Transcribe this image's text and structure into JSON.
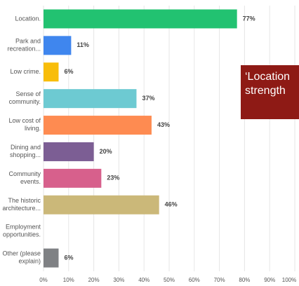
{
  "chart_data": {
    "type": "bar",
    "orientation": "horizontal",
    "categories": [
      "Location.",
      "Park and\nrecreation...",
      "Low crime.",
      "Sense of\ncommunity.",
      "Low cost of\nliving.",
      "Dining and\nshopping...",
      "Community\nevents.",
      "The historic\narchitecture...",
      "Employment\nopportunities.",
      "Other (please\nexplain)"
    ],
    "values": [
      77,
      11,
      6,
      37,
      43,
      20,
      23,
      46,
      null,
      6
    ],
    "value_labels": [
      "77%",
      "11%",
      "6%",
      "37%",
      "43%",
      "20%",
      "23%",
      "46%",
      null,
      "6%"
    ],
    "colors": [
      "#22c271",
      "#3f86ee",
      "#f8bd0a",
      "#6dcad2",
      "#fe8b51",
      "#7c5e94",
      "#d7608c",
      "#cbb879",
      null,
      "#7f8184"
    ],
    "xlim": [
      0,
      100
    ],
    "xticks": [
      {
        "value": 0,
        "label": "0%"
      },
      {
        "value": 10,
        "label": "10%"
      },
      {
        "value": 20,
        "label": "20%"
      },
      {
        "value": 30,
        "label": "30%"
      },
      {
        "value": 40,
        "label": "40%"
      },
      {
        "value": 50,
        "label": "50%"
      },
      {
        "value": 60,
        "label": "60%"
      },
      {
        "value": 70,
        "label": "70%"
      },
      {
        "value": 80,
        "label": "80%"
      },
      {
        "value": 90,
        "label": "90%"
      },
      {
        "value": 100,
        "label": "100%"
      }
    ],
    "grid": true,
    "annotation": {
      "lines": [
        "‘Location",
        "strength"
      ],
      "color": "#8e1a15"
    }
  }
}
